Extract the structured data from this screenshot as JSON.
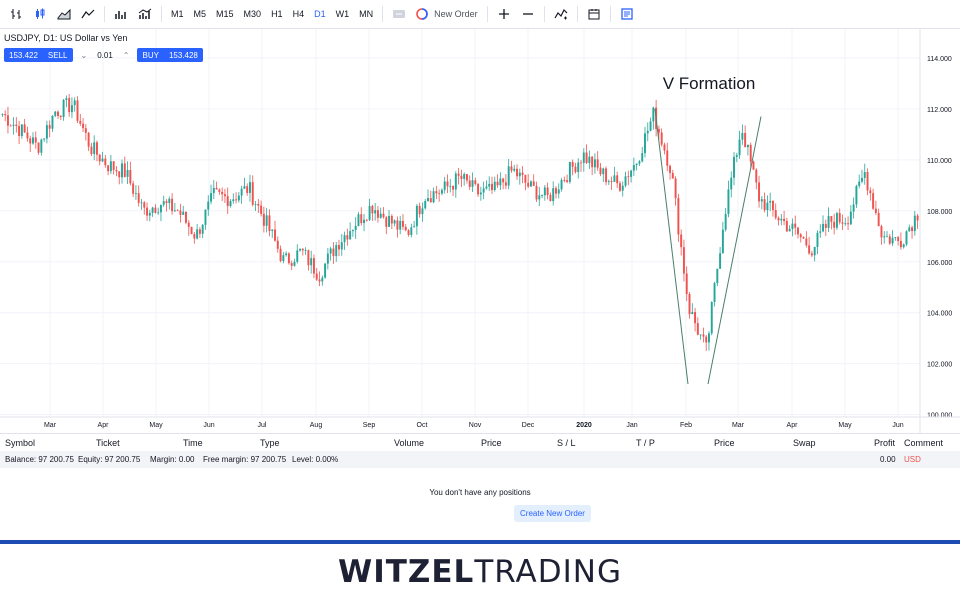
{
  "toolbar": {
    "timeframes": [
      "M1",
      "M5",
      "M15",
      "M30",
      "H1",
      "H4",
      "D1",
      "W1",
      "MN"
    ],
    "active_timeframe": "D1",
    "new_order_label": "New Order"
  },
  "chart": {
    "symbol_title": "USDJPY, D1: US Dollar vs Yen",
    "sell_price": "153.422",
    "sell_label": "SELL",
    "lot": "0.01",
    "buy_label": "BUY",
    "buy_price": "153.428",
    "annotation": "V Formation"
  },
  "chart_data": {
    "type": "candlestick",
    "x_labels": [
      "Mar",
      "Apr",
      "May",
      "Jun",
      "Jul",
      "Aug",
      "Sep",
      "Oct",
      "Nov",
      "Dec",
      "2020",
      "Jan",
      "Feb",
      "Mar",
      "Apr",
      "May",
      "Jun"
    ],
    "y_ticks": [
      "114.000",
      "112.000",
      "110.000",
      "108.000",
      "106.000",
      "104.000",
      "102.000",
      "100.000"
    ],
    "ylim": [
      100,
      114
    ],
    "up_color": "#26a69a",
    "down_color": "#ef5350",
    "approx_closes": [
      111.8,
      111.2,
      110.5,
      111.9,
      112.2,
      110.5,
      109.8,
      109.5,
      108.0,
      108.3,
      108.0,
      107.0,
      108.6,
      108.5,
      108.9,
      107.5,
      106.0,
      106.4,
      105.5,
      106.7,
      107.5,
      108.2,
      107.6,
      107.1,
      108.6,
      108.8,
      109.3,
      108.7,
      108.8,
      109.6,
      108.9,
      108.5,
      109.4,
      110.2,
      109.5,
      109.0,
      109.9,
      111.8,
      109.6,
      104.2,
      102.5,
      107.8,
      111.3,
      108.5,
      107.8,
      107.2,
      106.5,
      107.6,
      107.7,
      109.5,
      107.0,
      106.8,
      107.9
    ]
  },
  "positions": {
    "columns": [
      "Symbol",
      "Ticket",
      "Time",
      "Type",
      "Volume",
      "Price",
      "S / L",
      "T / P",
      "Price",
      "Swap",
      "Profit",
      "Comment"
    ],
    "balance": "Balance: 97 200.75",
    "equity": "Equity: 97 200.75",
    "margin": "Margin: 0.00",
    "free_margin": "Free margin: 97 200.75",
    "level": "Level: 0.00%",
    "profit": "0.00",
    "currency": "USD",
    "empty_message": "You don't have any positions",
    "create_label": "Create New Order"
  },
  "footer": {
    "logo_bold": "WITZEL",
    "logo_rest": "TRADING"
  }
}
